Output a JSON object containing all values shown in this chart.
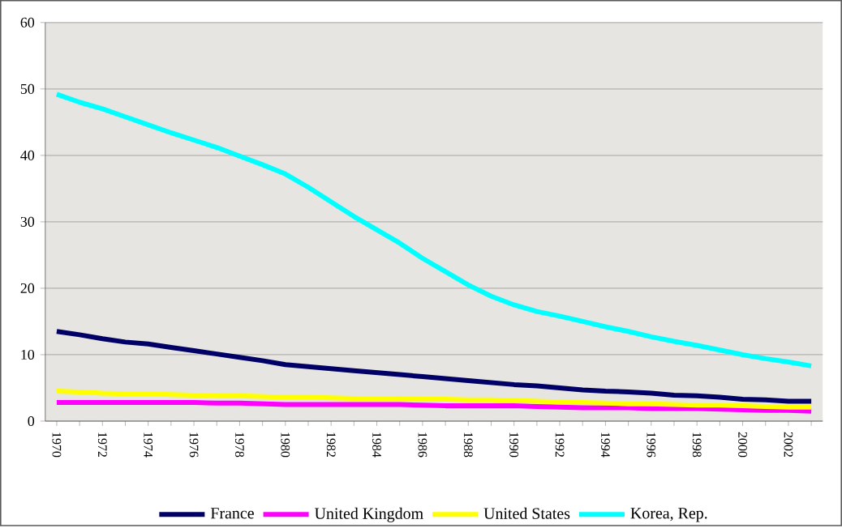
{
  "chart_data": {
    "type": "line",
    "categories": [
      "1970",
      null,
      "1972",
      null,
      "1974",
      null,
      "1976",
      null,
      "1978",
      null,
      "1980",
      null,
      "1982",
      null,
      "1984",
      null,
      "1986",
      null,
      "1988",
      null,
      "1990",
      null,
      "1992",
      null,
      "1994",
      null,
      "1996",
      null,
      "1998",
      null,
      "2000",
      null,
      "2002",
      null
    ],
    "series": [
      {
        "name": "France",
        "color": "#000066",
        "values": [
          13.5,
          13,
          12.4,
          11.9,
          11.6,
          11.1,
          10.6,
          10.1,
          9.6,
          9.1,
          8.5,
          8.2,
          7.9,
          7.6,
          7.3,
          7,
          6.7,
          6.4,
          6.1,
          5.8,
          5.5,
          5.3,
          5,
          4.7,
          4.5,
          4.4,
          4.2,
          3.9,
          3.8,
          3.6,
          3.3,
          3.2,
          3.0,
          3.0
        ]
      },
      {
        "name": "United Kingdom",
        "color": "#ff00ff",
        "values": [
          2.8,
          2.8,
          2.8,
          2.8,
          2.8,
          2.8,
          2.8,
          2.7,
          2.7,
          2.6,
          2.5,
          2.5,
          2.5,
          2.5,
          2.5,
          2.5,
          2.4,
          2.3,
          2.3,
          2.3,
          2.3,
          2.2,
          2.1,
          2.0,
          2.0,
          2.0,
          1.9,
          1.9,
          1.9,
          1.8,
          1.7,
          1.6,
          1.6,
          1.5
        ]
      },
      {
        "name": "United States",
        "color": "#ffff00",
        "values": [
          4.5,
          4.4,
          4.2,
          4.1,
          4.1,
          4,
          3.9,
          3.9,
          3.8,
          3.7,
          3.6,
          3.6,
          3.5,
          3.4,
          3.4,
          3.4,
          3.3,
          3.3,
          3.2,
          3.2,
          3.1,
          3,
          2.9,
          2.8,
          2.7,
          2.6,
          2.6,
          2.5,
          2.4,
          2.4,
          2.3,
          2.2,
          2.1,
          2.1
        ]
      },
      {
        "name": "Korea, Rep.",
        "color": "#00ffff",
        "values": [
          49.2,
          48,
          47,
          45.8,
          44.6,
          43.4,
          42.3,
          41.2,
          39.9,
          38.6,
          37.2,
          35.2,
          33,
          30.8,
          28.8,
          26.8,
          24.5,
          22.5,
          20.5,
          18.8,
          17.5,
          16.5,
          15.8,
          15,
          14.2,
          13.5,
          12.7,
          12,
          11.4,
          10.7,
          10,
          9.4,
          8.9,
          8.3
        ]
      }
    ],
    "ylim": [
      0,
      60
    ],
    "yticks": [
      0,
      10,
      20,
      30,
      40,
      50,
      60
    ],
    "grid": "y",
    "legend": "bottom",
    "marker": "none",
    "line_style": "solid"
  }
}
